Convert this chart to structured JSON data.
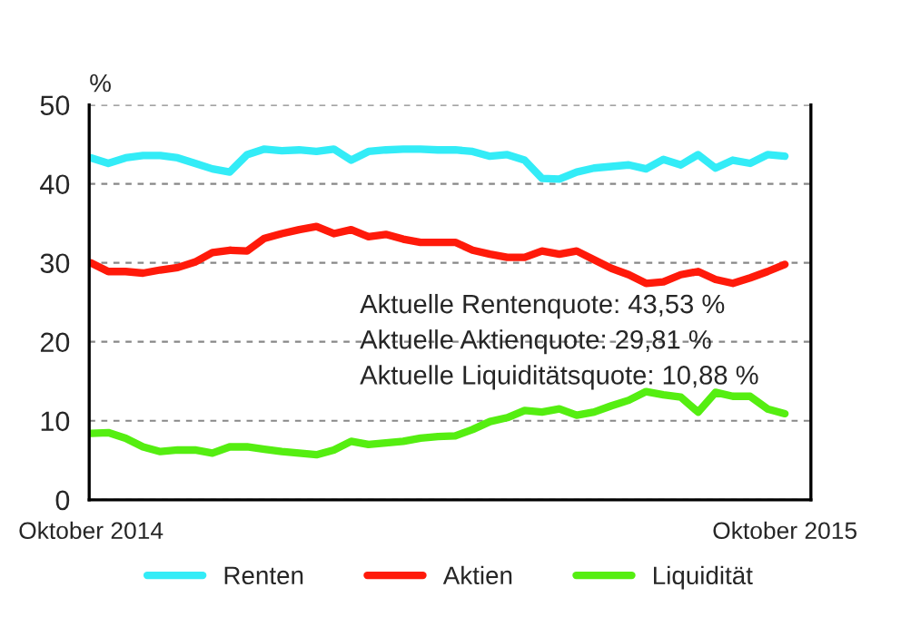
{
  "chart_data": {
    "type": "line",
    "ylabel": "%",
    "ylim": [
      0,
      50
    ],
    "yticks": [
      0,
      10,
      20,
      30,
      40,
      50
    ],
    "grid": "y",
    "legend": "bottom",
    "line_style": "solid",
    "marker": "none",
    "categories": [
      "Oktober 2014",
      null,
      null,
      null,
      null,
      null,
      null,
      null,
      null,
      null,
      null,
      null,
      null,
      null,
      null,
      null,
      null,
      null,
      null,
      null,
      null,
      null,
      null,
      null,
      null,
      null,
      null,
      null,
      null,
      null,
      null,
      null,
      null,
      null,
      null,
      null,
      null,
      null,
      null,
      null,
      "Oktober 2015"
    ],
    "series": [
      {
        "name": "Renten",
        "color": "#33ecf7",
        "values": [
          43.3,
          42.6,
          43.3,
          43.6,
          43.6,
          43.3,
          42.6,
          41.9,
          41.5,
          43.7,
          44.4,
          44.2,
          44.3,
          44.1,
          44.4,
          43.0,
          44.1,
          44.3,
          44.4,
          44.4,
          44.3,
          44.3,
          44.1,
          43.5,
          43.7,
          43.0,
          40.7,
          40.6,
          41.5,
          42.0,
          42.2,
          42.4,
          41.9,
          43.1,
          42.4,
          43.7,
          42.0,
          43.0,
          42.6,
          43.7,
          43.5
        ]
      },
      {
        "name": "Aktien",
        "color": "#ff1a0a",
        "values": [
          30.0,
          28.9,
          28.9,
          28.7,
          29.1,
          29.4,
          30.1,
          31.3,
          31.6,
          31.5,
          33.1,
          33.7,
          34.2,
          34.6,
          33.7,
          34.2,
          33.3,
          33.6,
          33.0,
          32.6,
          32.6,
          32.6,
          31.6,
          31.1,
          30.7,
          30.7,
          31.5,
          31.1,
          31.5,
          30.4,
          29.3,
          28.5,
          27.4,
          27.6,
          28.5,
          28.9,
          27.9,
          27.4,
          28.1,
          28.9,
          29.8
        ]
      },
      {
        "name": "Liquidität",
        "color": "#55ee11",
        "values": [
          8.4,
          8.5,
          7.8,
          6.7,
          6.1,
          6.3,
          6.3,
          5.9,
          6.7,
          6.7,
          6.4,
          6.1,
          5.9,
          5.7,
          6.3,
          7.4,
          7.0,
          7.2,
          7.4,
          7.8,
          8.0,
          8.1,
          8.9,
          9.9,
          10.4,
          11.3,
          11.1,
          11.5,
          10.7,
          11.1,
          11.9,
          12.6,
          13.7,
          13.3,
          13.0,
          11.1,
          13.6,
          13.1,
          13.1,
          11.5,
          10.9
        ]
      }
    ],
    "annotations": [
      "Aktuelle Rentenquote: 43,53 %",
      "Aktuelle Aktienquote: 29,81 %",
      "Aktuelle Liquiditätsquote: 10,88 %"
    ]
  }
}
